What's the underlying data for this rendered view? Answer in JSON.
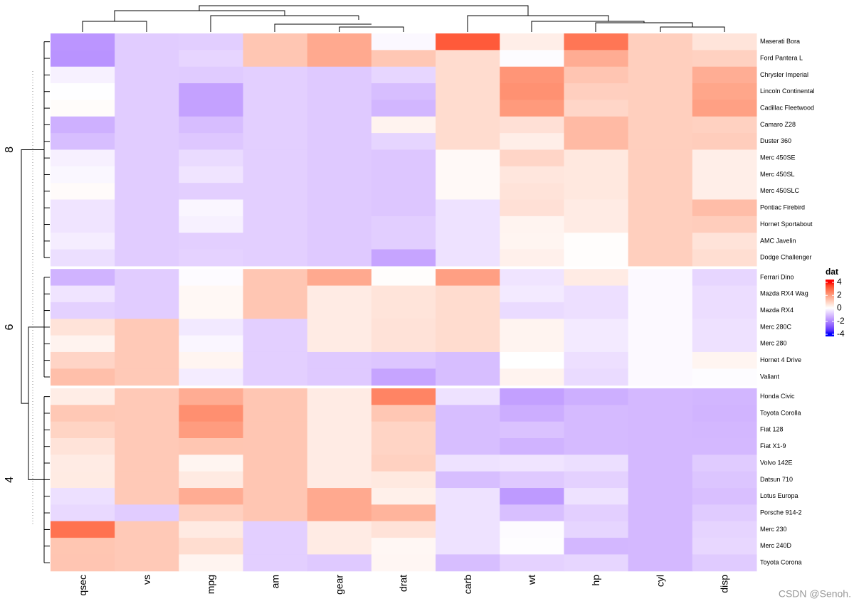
{
  "chart_data": {
    "type": "heatmap",
    "columns": [
      "qsec",
      "vs",
      "mpg",
      "am",
      "gear",
      "drat",
      "carb",
      "wt",
      "hp",
      "cyl",
      "disp"
    ],
    "color_scale": {
      "values": [
        -4,
        0,
        4
      ],
      "colors": [
        "#0000ff",
        "#ffffff",
        "#ff0000"
      ]
    },
    "legend_title": "dat",
    "zlim": [
      -4,
      4
    ],
    "legend_ticks": [
      4,
      2,
      0,
      -2,
      -4
    ],
    "row_groups": [
      {
        "label": "8",
        "rows": [
          {
            "name": "Maserati Bora",
            "values": [
              -1.82,
              -0.87,
              -0.84,
              1.19,
              1.78,
              -0.11,
              3.21,
              0.36,
              2.75,
              1.01,
              0.57
            ]
          },
          {
            "name": "Ford Pantera L",
            "values": [
              -1.87,
              -0.87,
              -0.71,
              1.19,
              1.78,
              1.17,
              0.74,
              -0.05,
              1.71,
              1.01,
              0.97
            ]
          },
          {
            "name": "Chrysler Imperial",
            "values": [
              -0.24,
              -0.87,
              -0.89,
              -0.81,
              -0.93,
              -0.69,
              0.74,
              2.17,
              1.21,
              1.01,
              1.69
            ]
          },
          {
            "name": "Lincoln Continental",
            "values": [
              -0.02,
              -0.87,
              -1.61,
              -0.81,
              -0.93,
              -1.12,
              0.74,
              2.26,
              1.0,
              1.01,
              1.85
            ]
          },
          {
            "name": "Cadillac Fleetwood",
            "values": [
              0.07,
              -0.87,
              -1.61,
              -0.81,
              -0.93,
              -1.25,
              0.74,
              2.08,
              0.85,
              1.01,
              1.95
            ]
          },
          {
            "name": "Camaro Z28",
            "values": [
              -1.36,
              -0.87,
              -1.13,
              -0.81,
              -0.93,
              0.25,
              0.74,
              0.64,
              1.43,
              1.01,
              0.96
            ]
          },
          {
            "name": "Duster 360",
            "values": [
              -1.12,
              -0.87,
              -0.96,
              -0.81,
              -0.93,
              -0.72,
              0.74,
              0.36,
              1.43,
              1.01,
              1.04
            ]
          },
          {
            "name": "Merc 450SE",
            "values": [
              -0.25,
              -0.87,
              -0.61,
              -0.81,
              -0.93,
              -0.98,
              0.12,
              0.87,
              0.49,
              1.01,
              0.36
            ]
          },
          {
            "name": "Merc 450SL",
            "values": [
              -0.14,
              -0.87,
              -0.46,
              -0.81,
              -0.93,
              -0.98,
              0.12,
              0.52,
              0.49,
              1.01,
              0.36
            ]
          },
          {
            "name": "Merc 450SLC",
            "values": [
              0.08,
              -0.87,
              -0.81,
              -0.81,
              -0.93,
              -0.98,
              0.12,
              0.58,
              0.49,
              1.01,
              0.36
            ]
          },
          {
            "name": "Pontiac Firebird",
            "values": [
              -0.45,
              -0.87,
              -0.15,
              -0.81,
              -0.93,
              -0.97,
              -0.5,
              0.64,
              0.41,
              1.01,
              1.37
            ]
          },
          {
            "name": "Hornet Sportabout",
            "values": [
              -0.46,
              -0.87,
              -0.23,
              -0.81,
              -0.93,
              -0.84,
              -0.5,
              0.23,
              0.41,
              1.01,
              1.04
            ]
          },
          {
            "name": "AMC Javelin",
            "values": [
              -0.31,
              -0.87,
              -0.81,
              -0.81,
              -0.93,
              -0.84,
              -0.5,
              0.22,
              0.05,
              1.01,
              0.59
            ]
          },
          {
            "name": "Dodge Challenger",
            "values": [
              -0.55,
              -0.87,
              -0.76,
              -0.81,
              -0.93,
              -1.56,
              -0.5,
              0.31,
              0.05,
              1.01,
              0.7
            ]
          }
        ]
      },
      {
        "label": "6",
        "rows": [
          {
            "name": "Ferrari Dino",
            "values": [
              -1.31,
              -0.87,
              -0.06,
              1.19,
              1.78,
              0.04,
              1.97,
              -0.46,
              0.41,
              -0.1,
              -0.69
            ]
          },
          {
            "name": "Mazda RX4 Wag",
            "values": [
              -0.46,
              -0.87,
              0.15,
              1.19,
              0.42,
              0.57,
              0.74,
              -0.35,
              -0.54,
              -0.1,
              -0.57
            ]
          },
          {
            "name": "Mazda RX4",
            "values": [
              -0.78,
              -0.87,
              0.15,
              1.19,
              0.42,
              0.57,
              0.74,
              -0.61,
              -0.54,
              -0.1,
              -0.57
            ]
          },
          {
            "name": "Merc 280C",
            "values": [
              0.59,
              1.12,
              -0.38,
              -0.81,
              0.42,
              0.6,
              0.74,
              0.23,
              -0.35,
              -0.1,
              -0.51
            ]
          },
          {
            "name": "Merc 280",
            "values": [
              0.25,
              1.12,
              -0.15,
              -0.81,
              0.42,
              0.6,
              0.74,
              0.23,
              -0.35,
              -0.1,
              -0.51
            ]
          },
          {
            "name": "Hornet 4 Drive",
            "values": [
              0.89,
              1.12,
              0.22,
              -0.81,
              -0.93,
              -0.97,
              -1.12,
              0.0,
              -0.54,
              -0.1,
              0.22
            ]
          },
          {
            "name": "Valiant",
            "values": [
              1.33,
              1.12,
              -0.33,
              -0.81,
              -0.93,
              -1.56,
              -1.12,
              0.25,
              -0.61,
              -0.1,
              -0.05
            ]
          }
        ]
      },
      {
        "label": "4",
        "rows": [
          {
            "name": "Honda Civic",
            "values": [
              0.38,
              1.12,
              1.71,
              1.19,
              0.42,
              2.49,
              -0.5,
              -1.64,
              -1.38,
              -1.22,
              -1.25
            ]
          },
          {
            "name": "Toyota Corolla",
            "values": [
              1.15,
              1.12,
              2.29,
              1.19,
              0.42,
              1.17,
              -1.12,
              -1.41,
              -1.19,
              -1.22,
              -1.29
            ]
          },
          {
            "name": "Fiat 128",
            "values": [
              0.91,
              1.12,
              2.04,
              1.19,
              0.42,
              0.9,
              -1.12,
              -1.04,
              -1.18,
              -1.22,
              -1.23
            ]
          },
          {
            "name": "Fiat X1-9",
            "values": [
              0.59,
              1.12,
              1.2,
              1.19,
              0.42,
              0.9,
              -1.12,
              -1.31,
              -1.18,
              -1.22,
              -1.22
            ]
          },
          {
            "name": "Volvo 142E",
            "values": [
              0.42,
              1.12,
              0.22,
              1.19,
              0.42,
              0.96,
              -0.5,
              -0.45,
              -0.55,
              -1.22,
              -0.89
            ]
          },
          {
            "name": "Datsun 710",
            "values": [
              0.43,
              1.12,
              0.45,
              1.19,
              0.42,
              0.47,
              -1.12,
              -0.92,
              -0.78,
              -1.22,
              -0.99
            ]
          },
          {
            "name": "Lotus Europa",
            "values": [
              -0.53,
              1.12,
              1.71,
              1.19,
              1.78,
              0.32,
              -0.5,
              -1.74,
              -0.49,
              -1.22,
              -1.09
            ]
          },
          {
            "name": "Porsche 914-2",
            "values": [
              -0.64,
              -0.87,
              0.98,
              1.19,
              1.78,
              1.56,
              -0.5,
              -1.1,
              -0.81,
              -1.22,
              -0.89
            ]
          },
          {
            "name": "Merc 230",
            "values": [
              2.83,
              1.12,
              0.45,
              -0.81,
              0.42,
              0.6,
              -0.5,
              -0.07,
              -0.72,
              -1.22,
              -0.73
            ]
          },
          {
            "name": "Merc 240D",
            "values": [
              1.2,
              1.12,
              0.72,
              -0.81,
              0.42,
              0.17,
              -0.5,
              -0.03,
              -1.23,
              -1.22,
              -0.68
            ]
          },
          {
            "name": "Toyota Corona",
            "values": [
              1.21,
              1.12,
              0.23,
              -0.81,
              -0.93,
              0.19,
              -1.12,
              -0.77,
              -0.69,
              -1.22,
              -0.89
            ]
          }
        ]
      }
    ]
  },
  "watermark": "CSDN @Senoh."
}
